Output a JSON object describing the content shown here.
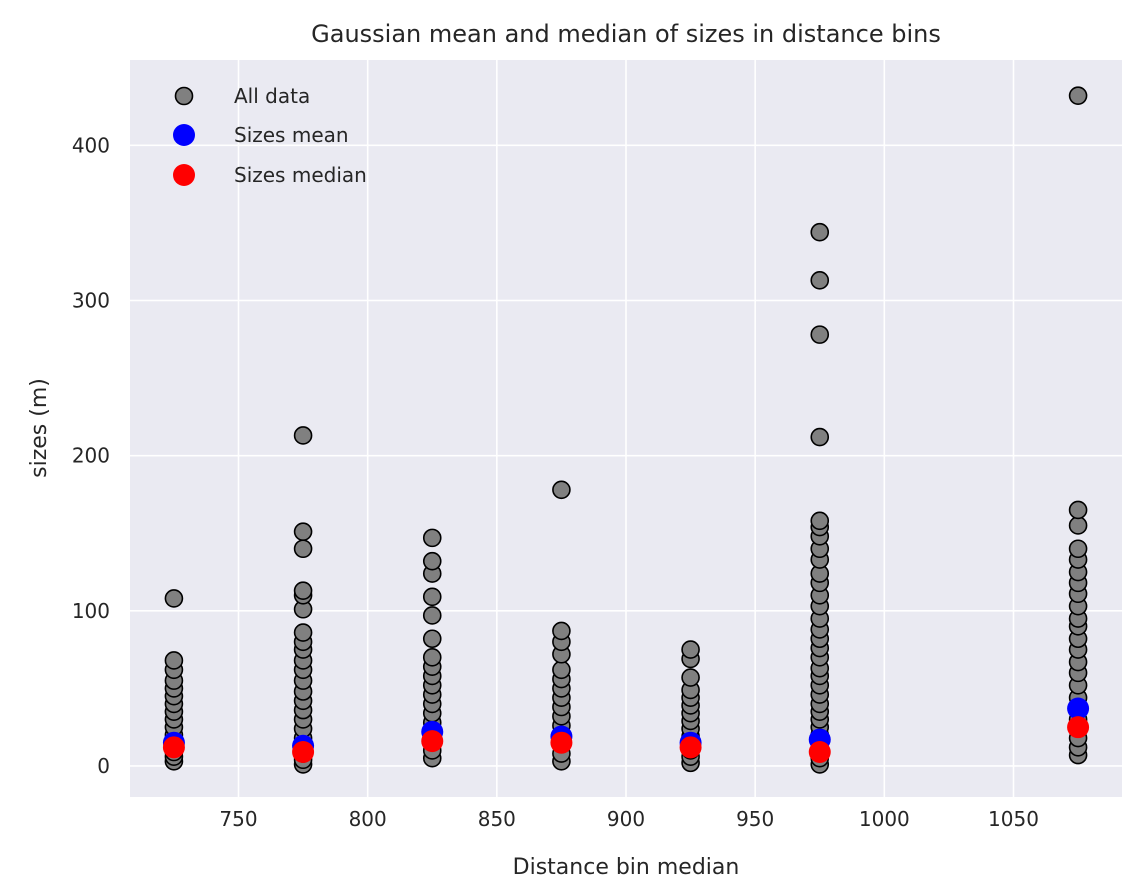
{
  "chart_data": {
    "type": "scatter",
    "title": "Gaussian mean and median of sizes in distance bins",
    "xlabel": "Distance bin median",
    "ylabel": "sizes (m)",
    "xlim": [
      708,
      1092
    ],
    "ylim": [
      -20,
      455
    ],
    "xticks": [
      750,
      800,
      850,
      900,
      950,
      1000,
      1050
    ],
    "yticks": [
      0,
      100,
      200,
      300,
      400
    ],
    "grid": true,
    "legend_position": "top-left",
    "series": [
      {
        "name": "All data",
        "color": "#808080",
        "edge_color": "#000000",
        "points": [
          [
            725,
            3
          ],
          [
            725,
            6
          ],
          [
            725,
            9
          ],
          [
            725,
            12
          ],
          [
            725,
            16
          ],
          [
            725,
            20
          ],
          [
            725,
            25
          ],
          [
            725,
            30
          ],
          [
            725,
            35
          ],
          [
            725,
            40
          ],
          [
            725,
            45
          ],
          [
            725,
            50
          ],
          [
            725,
            55
          ],
          [
            725,
            62
          ],
          [
            725,
            68
          ],
          [
            725,
            108
          ],
          [
            775,
            1
          ],
          [
            775,
            4
          ],
          [
            775,
            8
          ],
          [
            775,
            12
          ],
          [
            775,
            18
          ],
          [
            775,
            24
          ],
          [
            775,
            30
          ],
          [
            775,
            36
          ],
          [
            775,
            42
          ],
          [
            775,
            48
          ],
          [
            775,
            55
          ],
          [
            775,
            62
          ],
          [
            775,
            68
          ],
          [
            775,
            75
          ],
          [
            775,
            80
          ],
          [
            775,
            86
          ],
          [
            775,
            101
          ],
          [
            775,
            110
          ],
          [
            775,
            113
          ],
          [
            775,
            140
          ],
          [
            775,
            151
          ],
          [
            775,
            213
          ],
          [
            825,
            5
          ],
          [
            825,
            10
          ],
          [
            825,
            16
          ],
          [
            825,
            22
          ],
          [
            825,
            28
          ],
          [
            825,
            34
          ],
          [
            825,
            40
          ],
          [
            825,
            46
          ],
          [
            825,
            52
          ],
          [
            825,
            58
          ],
          [
            825,
            64
          ],
          [
            825,
            70
          ],
          [
            825,
            82
          ],
          [
            825,
            97
          ],
          [
            825,
            109
          ],
          [
            825,
            124
          ],
          [
            825,
            132
          ],
          [
            825,
            147
          ],
          [
            875,
            3
          ],
          [
            875,
            8
          ],
          [
            875,
            14
          ],
          [
            875,
            20
          ],
          [
            875,
            26
          ],
          [
            875,
            32
          ],
          [
            875,
            38
          ],
          [
            875,
            44
          ],
          [
            875,
            50
          ],
          [
            875,
            56
          ],
          [
            875,
            62
          ],
          [
            875,
            72
          ],
          [
            875,
            80
          ],
          [
            875,
            87
          ],
          [
            875,
            178
          ],
          [
            925,
            2
          ],
          [
            925,
            6
          ],
          [
            925,
            10
          ],
          [
            925,
            14
          ],
          [
            925,
            19
          ],
          [
            925,
            24
          ],
          [
            925,
            29
          ],
          [
            925,
            34
          ],
          [
            925,
            39
          ],
          [
            925,
            44
          ],
          [
            925,
            49
          ],
          [
            925,
            57
          ],
          [
            925,
            69
          ],
          [
            925,
            75
          ],
          [
            975,
            1
          ],
          [
            975,
            5
          ],
          [
            975,
            10
          ],
          [
            975,
            15
          ],
          [
            975,
            20
          ],
          [
            975,
            25
          ],
          [
            975,
            30
          ],
          [
            975,
            35
          ],
          [
            975,
            40
          ],
          [
            975,
            46
          ],
          [
            975,
            52
          ],
          [
            975,
            58
          ],
          [
            975,
            63
          ],
          [
            975,
            70
          ],
          [
            975,
            76
          ],
          [
            975,
            82
          ],
          [
            975,
            88
          ],
          [
            975,
            95
          ],
          [
            975,
            103
          ],
          [
            975,
            110
          ],
          [
            975,
            118
          ],
          [
            975,
            124
          ],
          [
            975,
            133
          ],
          [
            975,
            140
          ],
          [
            975,
            148
          ],
          [
            975,
            154
          ],
          [
            975,
            158
          ],
          [
            975,
            212
          ],
          [
            975,
            278
          ],
          [
            975,
            313
          ],
          [
            975,
            344
          ],
          [
            1075,
            7
          ],
          [
            1075,
            12
          ],
          [
            1075,
            18
          ],
          [
            1075,
            24
          ],
          [
            1075,
            30
          ],
          [
            1075,
            37
          ],
          [
            1075,
            44
          ],
          [
            1075,
            52
          ],
          [
            1075,
            60
          ],
          [
            1075,
            67
          ],
          [
            1075,
            75
          ],
          [
            1075,
            82
          ],
          [
            1075,
            90
          ],
          [
            1075,
            95
          ],
          [
            1075,
            103
          ],
          [
            1075,
            111
          ],
          [
            1075,
            118
          ],
          [
            1075,
            125
          ],
          [
            1075,
            133
          ],
          [
            1075,
            140
          ],
          [
            1075,
            155
          ],
          [
            1075,
            165
          ],
          [
            1075,
            432
          ]
        ]
      },
      {
        "name": "Sizes mean",
        "color": "#0000ff",
        "x": [
          725,
          775,
          825,
          875,
          925,
          975,
          1075
        ],
        "y": [
          15,
          13,
          22,
          19,
          15,
          17,
          37
        ]
      },
      {
        "name": "Sizes median",
        "color": "#ff0000",
        "x": [
          725,
          775,
          825,
          875,
          925,
          975,
          1075
        ],
        "y": [
          12,
          9,
          16,
          15,
          12,
          9,
          25
        ]
      }
    ]
  }
}
